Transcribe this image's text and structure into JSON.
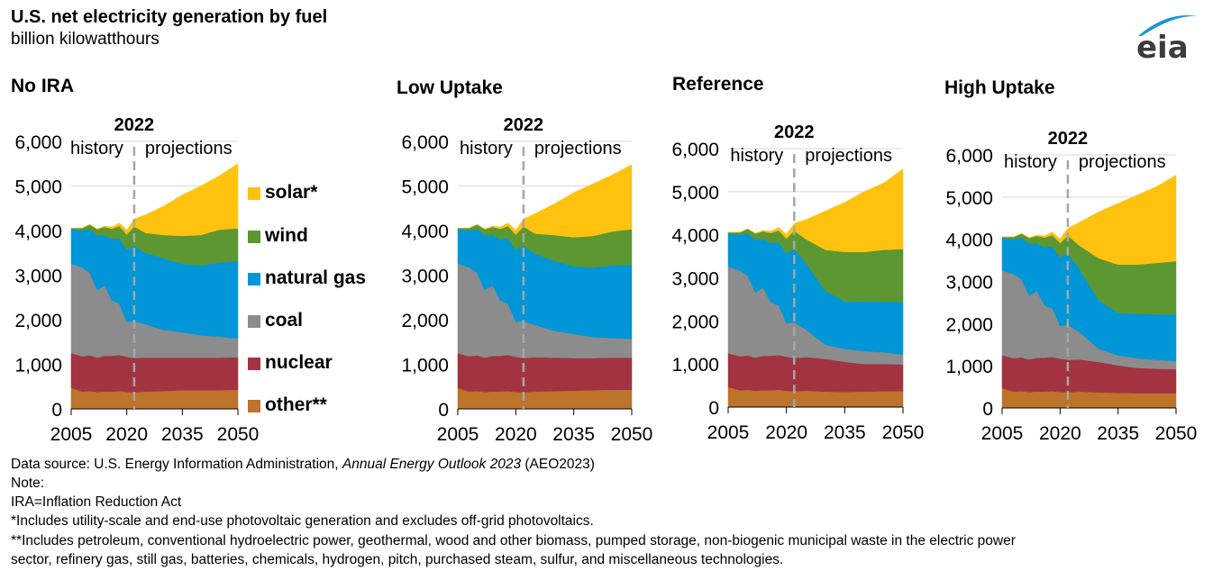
{
  "header": {
    "title": "U.S. net electricity generation by fuel",
    "subtitle": "billion kilowatthours",
    "logo_text": "eia"
  },
  "legend": [
    {
      "name": "solar*",
      "color": "#FFC20E"
    },
    {
      "name": "wind",
      "color": "#5D9732"
    },
    {
      "name": "natural gas",
      "color": "#0096D7"
    },
    {
      "name": "coal",
      "color": "#8C8C8C"
    },
    {
      "name": "nuclear",
      "color": "#A33340"
    },
    {
      "name": "other**",
      "color": "#BD732A"
    }
  ],
  "chart_data": [
    {
      "type": "area",
      "stacked": true,
      "title": "No IRA",
      "ylim": [
        0,
        6000
      ],
      "yticks": [
        "0",
        "1,000",
        "2,000",
        "3,000",
        "4,000",
        "5,000",
        "6,000"
      ],
      "xticks": [
        "2005",
        "2020",
        "2035",
        "2050"
      ],
      "annotations": {
        "divider_year": "2022",
        "left": "history",
        "right": "projections"
      },
      "x": [
        2005,
        2008,
        2010,
        2012,
        2014,
        2016,
        2018,
        2020,
        2022,
        2025,
        2030,
        2035,
        2040,
        2045,
        2050
      ],
      "series": [
        {
          "name": "other**",
          "values": [
            470,
            390,
            400,
            380,
            390,
            390,
            400,
            380,
            370,
            390,
            400,
            420,
            420,
            420,
            430
          ]
        },
        {
          "name": "nuclear",
          "values": [
            780,
            790,
            800,
            770,
            800,
            800,
            810,
            790,
            770,
            760,
            750,
            730,
            730,
            730,
            730
          ]
        },
        {
          "name": "coal",
          "values": [
            2010,
            1990,
            1850,
            1510,
            1580,
            1240,
            1150,
            780,
            830,
            750,
            620,
            570,
            500,
            470,
            420
          ]
        },
        {
          "name": "natural gas",
          "values": [
            780,
            830,
            990,
            1230,
            1130,
            1380,
            1470,
            1620,
            1690,
            1600,
            1610,
            1530,
            1570,
            1660,
            1740
          ]
        },
        {
          "name": "wind",
          "values": [
            15,
            55,
            95,
            140,
            180,
            230,
            270,
            340,
            430,
            450,
            520,
            630,
            680,
            740,
            730
          ]
        },
        {
          "name": "solar*",
          "values": [
            0,
            5,
            5,
            10,
            20,
            40,
            70,
            100,
            170,
            400,
            650,
            920,
            1100,
            1210,
            1450
          ]
        }
      ]
    },
    {
      "type": "area",
      "stacked": true,
      "title": "Low Uptake",
      "ylim": [
        0,
        6000
      ],
      "yticks": [
        "0",
        "1,000",
        "2,000",
        "3,000",
        "4,000",
        "5,000",
        "6,000"
      ],
      "xticks": [
        "2005",
        "2020",
        "2035",
        "2050"
      ],
      "annotations": {
        "divider_year": "2022",
        "left": "history",
        "right": "projections"
      },
      "x": [
        2005,
        2008,
        2010,
        2012,
        2014,
        2016,
        2018,
        2020,
        2022,
        2025,
        2030,
        2035,
        2040,
        2045,
        2050
      ],
      "series": [
        {
          "name": "other**",
          "values": [
            470,
            390,
            400,
            380,
            390,
            390,
            400,
            380,
            370,
            390,
            400,
            410,
            420,
            430,
            430
          ]
        },
        {
          "name": "nuclear",
          "values": [
            780,
            790,
            800,
            770,
            800,
            800,
            810,
            790,
            770,
            770,
            750,
            730,
            720,
            720,
            720
          ]
        },
        {
          "name": "coal",
          "values": [
            2010,
            1990,
            1850,
            1510,
            1580,
            1240,
            1150,
            780,
            830,
            720,
            600,
            540,
            470,
            440,
            420
          ]
        },
        {
          "name": "natural gas",
          "values": [
            780,
            830,
            990,
            1230,
            1130,
            1380,
            1470,
            1620,
            1690,
            1600,
            1570,
            1520,
            1560,
            1630,
            1660
          ]
        },
        {
          "name": "wind",
          "values": [
            15,
            55,
            95,
            140,
            180,
            230,
            270,
            340,
            430,
            450,
            580,
            650,
            710,
            760,
            800
          ]
        },
        {
          "name": "solar*",
          "values": [
            0,
            5,
            5,
            10,
            20,
            40,
            70,
            100,
            170,
            450,
            700,
            1000,
            1170,
            1270,
            1450
          ]
        }
      ]
    },
    {
      "type": "area",
      "stacked": true,
      "title": "Reference",
      "ylim": [
        0,
        6000
      ],
      "yticks": [
        "0",
        "1,000",
        "2,000",
        "3,000",
        "4,000",
        "5,000",
        "6,000"
      ],
      "xticks": [
        "2005",
        "2020",
        "2035",
        "2050"
      ],
      "annotations": {
        "divider_year": "2022",
        "left": "history",
        "right": "projections"
      },
      "x": [
        2005,
        2008,
        2010,
        2012,
        2014,
        2016,
        2018,
        2020,
        2022,
        2025,
        2030,
        2035,
        2040,
        2045,
        2050
      ],
      "series": [
        {
          "name": "other**",
          "values": [
            470,
            390,
            400,
            380,
            390,
            390,
            400,
            380,
            370,
            380,
            360,
            350,
            360,
            370,
            370
          ]
        },
        {
          "name": "nuclear",
          "values": [
            780,
            790,
            800,
            770,
            800,
            800,
            810,
            790,
            770,
            780,
            760,
            700,
            640,
            630,
            620
          ]
        },
        {
          "name": "coal",
          "values": [
            2010,
            1990,
            1850,
            1510,
            1580,
            1240,
            1150,
            780,
            830,
            640,
            330,
            300,
            300,
            270,
            230
          ]
        },
        {
          "name": "natural gas",
          "values": [
            780,
            830,
            990,
            1230,
            1130,
            1380,
            1470,
            1620,
            1690,
            1550,
            1250,
            1100,
            1150,
            1180,
            1220
          ]
        },
        {
          "name": "wind",
          "values": [
            15,
            55,
            95,
            140,
            180,
            230,
            270,
            340,
            430,
            550,
            950,
            1150,
            1150,
            1200,
            1230
          ]
        },
        {
          "name": "solar*",
          "values": [
            0,
            5,
            5,
            10,
            20,
            40,
            70,
            100,
            170,
            450,
            900,
            1150,
            1400,
            1550,
            1860
          ]
        }
      ]
    },
    {
      "type": "area",
      "stacked": true,
      "title": "High Uptake",
      "ylim": [
        0,
        6000
      ],
      "yticks": [
        "0",
        "1,000",
        "2,000",
        "3,000",
        "4,000",
        "5,000",
        "6,000"
      ],
      "xticks": [
        "2005",
        "2020",
        "2035",
        "2050"
      ],
      "annotations": {
        "divider_year": "2022",
        "left": "history",
        "right": "projections"
      },
      "x": [
        2005,
        2008,
        2010,
        2012,
        2014,
        2016,
        2018,
        2020,
        2022,
        2025,
        2030,
        2035,
        2040,
        2045,
        2050
      ],
      "series": [
        {
          "name": "other**",
          "values": [
            470,
            390,
            400,
            380,
            390,
            390,
            400,
            380,
            370,
            390,
            370,
            360,
            350,
            350,
            350
          ]
        },
        {
          "name": "nuclear",
          "values": [
            780,
            790,
            800,
            770,
            800,
            800,
            810,
            790,
            770,
            760,
            720,
            650,
            600,
            580,
            570
          ]
        },
        {
          "name": "coal",
          "values": [
            2010,
            1990,
            1850,
            1510,
            1580,
            1240,
            1150,
            780,
            830,
            650,
            310,
            240,
            230,
            210,
            190
          ]
        },
        {
          "name": "natural gas",
          "values": [
            780,
            830,
            990,
            1230,
            1130,
            1380,
            1470,
            1620,
            1690,
            1500,
            1150,
            1000,
            1050,
            1080,
            1110
          ]
        },
        {
          "name": "wind",
          "values": [
            15,
            55,
            95,
            140,
            180,
            230,
            270,
            340,
            430,
            550,
            1000,
            1150,
            1170,
            1220,
            1260
          ]
        },
        {
          "name": "solar*",
          "values": [
            0,
            5,
            5,
            10,
            20,
            40,
            70,
            100,
            170,
            550,
            1100,
            1450,
            1650,
            1810,
            2040
          ]
        }
      ]
    }
  ],
  "footer": {
    "source_prefix": "Data source: U.S. Energy Information Administration, ",
    "source_italic": "Annual Energy Outlook 2023",
    "source_suffix": " (AEO2023)",
    "note_label": "Note:",
    "note_ira": "IRA=Inflation Reduction Act",
    "note_solar": "*Includes utility-scale and end-use photovoltaic generation and excludes off-grid photovoltaics.",
    "note_other_1": "**Includes petroleum, conventional hydroelectric power, geothermal, wood and other biomass, pumped storage, non-biogenic municipal waste in the electric power",
    "note_other_2": "sector, refinery gas, still gas, batteries, chemicals, hydrogen, pitch, purchased steam, sulfur, and miscellaneous technologies."
  }
}
